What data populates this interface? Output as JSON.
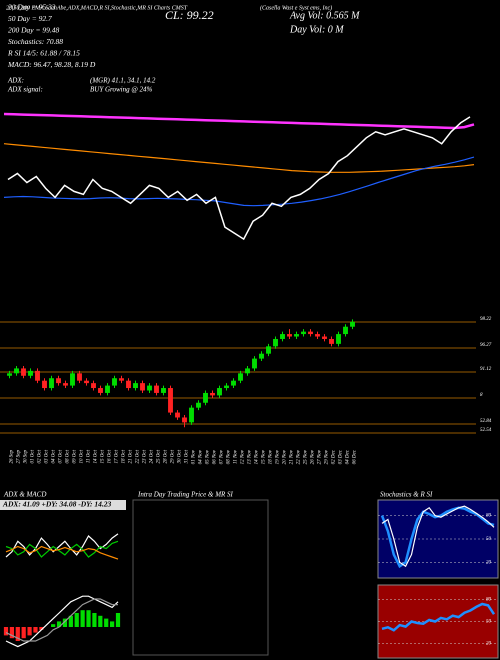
{
  "header": {
    "title": "20,50,200 EMA ScanAbe,ADX,MACD,R SI,Stochastic,MR SI Charts CMST",
    "subtitle": "(Casella Wast e Syst ems, Inc)",
    "cl": "CL: 99.22",
    "avg_vol": "Avg Vol: 0.565 M",
    "day_vol": "Day Vol: 0 M",
    "stats": [
      "20 Day = 95.33",
      "50 Day = 92.7",
      "200 Day = 99.48",
      "Stochastics: 70.88",
      "R SI 14/5: 61.88 / 78.15",
      "MACD: 96.47, 98.28, 8.19 D"
    ],
    "adx_line": [
      "ADX:",
      "(MGR) 41.1, 34.1, 14.2"
    ],
    "adx_signal": [
      "ADX signal:",
      "BUY Growing @ 24%"
    ]
  },
  "panels": {
    "adx_macd": "ADX & MACD",
    "intraday": "Intra Day Trading Price & MR SI",
    "stoch_rsi": "Stochastics & R SI",
    "adx_values": "ADX: 41.09 +DY: 34.08 -DY: 14.23"
  },
  "chart_data": [
    {
      "type": "line",
      "ylim": [
        55,
        102
      ],
      "price_color": "#ffffff",
      "series": [
        {
          "color": "#ff33ff",
          "values": [
            100,
            99.9,
            99.8,
            99.7,
            99.6,
            99.5,
            99.4,
            99.3,
            99.2,
            99.1,
            99,
            98.9,
            98.8,
            98.7,
            98.6,
            98.5,
            98.4,
            98.3,
            98.2,
            98.1,
            98,
            97.9,
            97.8,
            97.7,
            97.6,
            97.5,
            97.4,
            97.3,
            97.2,
            97.1,
            97,
            96.9,
            96.8,
            96.7,
            96.6,
            96.5,
            96.4,
            96.3,
            96.2,
            96.1,
            96,
            95.9,
            95.8,
            95.7,
            95.6,
            95.5,
            95.4,
            95.3,
            95.6,
            96.5
          ]
        },
        {
          "color": "#ff8c00",
          "values": [
            90,
            89.7,
            89.4,
            89.1,
            88.8,
            88.5,
            88.2,
            87.9,
            87.6,
            87.3,
            87,
            86.7,
            86.4,
            86.1,
            85.8,
            85.5,
            85.2,
            84.9,
            84.6,
            84.3,
            84,
            83.7,
            83.4,
            83.1,
            82.8,
            82.5,
            82.2,
            81.9,
            81.6,
            81.3,
            81,
            80.8,
            80.6,
            80.5,
            80.4,
            80.4,
            80.4,
            80.5,
            80.6,
            80.7,
            80.9,
            81.1,
            81.3,
            81.5,
            81.7,
            81.9,
            82.1,
            82.3,
            82.6,
            83
          ]
        },
        {
          "color": "#1f5fff",
          "values": [
            72,
            72.2,
            72.3,
            72.2,
            72,
            71.8,
            71.7,
            71.6,
            71.5,
            71.6,
            71.8,
            71.9,
            71.8,
            71.6,
            71.5,
            71.6,
            71.7,
            71.6,
            71.5,
            71.3,
            71.2,
            71,
            70.8,
            70.3,
            69.8,
            69.3,
            69.2,
            69.3,
            69.5,
            69.7,
            70,
            70.4,
            70.9,
            71.5,
            72.2,
            73,
            73.9,
            74.9,
            75.9,
            77,
            78,
            79,
            80,
            81,
            81.8,
            82.5,
            83.1,
            83.8,
            84.6,
            85.5
          ]
        }
      ]
    },
    {
      "type": "candlestick",
      "ylim": [
        50,
        103
      ],
      "categories": [
        "26 Sep",
        "27 Sep",
        "30 Sep",
        "01 Oct",
        "02 Oct",
        "03 Oct",
        "04 Oct",
        "07 Oct",
        "08 Oct",
        "09 Oct",
        "10 Oct",
        "11 Oct",
        "14 Oct",
        "15 Oct",
        "16 Oct",
        "17 Oct",
        "18 Oct",
        "21 Oct",
        "22 Oct",
        "23 Oct",
        "24 Oct",
        "25 Oct",
        "28 Oct",
        "29 Oct",
        "30 Oct",
        "31 Oct",
        "01 Nov",
        "04 Nov",
        "05 Nov",
        "06 Nov",
        "07 Nov",
        "08 Nov",
        "11 Nov",
        "12 Nov",
        "13 Nov",
        "14 Nov",
        "15 Nov",
        "18 Nov",
        "19 Nov",
        "20 Nov",
        "21 Nov",
        "22 Nov",
        "25 Nov",
        "26 Nov",
        "27 Nov",
        "29 Nov",
        "02 Dec",
        "03 Dec",
        "04 Dec",
        "06 Dec"
      ],
      "open": [
        77,
        78,
        80,
        77,
        79,
        75,
        72,
        76,
        74,
        73,
        78,
        75,
        74,
        72,
        70,
        73,
        76,
        75,
        72,
        74,
        71,
        73,
        70,
        72,
        62,
        60,
        58,
        64,
        66,
        70,
        69,
        72,
        73,
        75,
        78,
        80,
        84,
        86,
        89,
        92,
        94,
        93,
        94,
        95,
        94,
        93,
        92,
        90,
        94,
        97
      ],
      "high": [
        79,
        81,
        81,
        80,
        80,
        76,
        77,
        77,
        75,
        79,
        79,
        76,
        75,
        73,
        74,
        77,
        77,
        76,
        75,
        75,
        74,
        74,
        73,
        73,
        63,
        61,
        65,
        67,
        71,
        71,
        73,
        74,
        76,
        79,
        81,
        85,
        87,
        90,
        93,
        95,
        96,
        95,
        96,
        96,
        95,
        94,
        93,
        95,
        98,
        100
      ],
      "low": [
        76,
        77,
        76,
        76,
        74,
        71,
        71,
        73,
        72,
        72,
        74,
        73,
        71,
        69,
        69,
        72,
        74,
        71,
        71,
        70,
        70,
        69,
        69,
        61,
        59,
        56,
        57,
        63,
        65,
        68,
        68,
        71,
        72,
        74,
        77,
        79,
        83,
        85,
        88,
        91,
        92,
        92,
        93,
        93,
        92,
        91,
        89,
        89,
        93,
        96
      ],
      "close": [
        78,
        80,
        77,
        79,
        75,
        72,
        76,
        74,
        73,
        78,
        75,
        74,
        72,
        70,
        73,
        76,
        75,
        72,
        74,
        71,
        73,
        70,
        72,
        62,
        60,
        58,
        64,
        66,
        70,
        69,
        72,
        73,
        75,
        78,
        80,
        84,
        86,
        89,
        92,
        94,
        93,
        94,
        95,
        94,
        93,
        92,
        90,
        94,
        97,
        99
      ],
      "up_color": "#00dd00",
      "down_color": "#ff2222",
      "level_color": "#c87800",
      "levels": [
        "98.22",
        "96.27",
        "91.12",
        "8",
        "52.84",
        "52.54"
      ]
    },
    {
      "type": "line",
      "ylim": [
        0,
        60
      ],
      "series": [
        {
          "color": "#ffffff",
          "values": [
            20,
            25,
            35,
            30,
            22,
            28,
            38,
            32,
            25,
            30,
            35,
            28,
            22,
            30,
            40,
            35,
            28,
            32,
            38,
            42
          ]
        },
        {
          "color": "#00cc00",
          "values": [
            30,
            28,
            22,
            25,
            32,
            28,
            20,
            25,
            30,
            26,
            22,
            28,
            32,
            27,
            20,
            24,
            30,
            28,
            33,
            35
          ]
        },
        {
          "color": "#ff8c00",
          "values": [
            25,
            27,
            30,
            28,
            24,
            26,
            30,
            28,
            26,
            27,
            29,
            27,
            25,
            26,
            28,
            27,
            24,
            22,
            20,
            18
          ]
        }
      ]
    },
    {
      "type": "macd",
      "ylim": [
        -10,
        15
      ],
      "histogram": [
        -3,
        -4,
        -5,
        -4,
        -3,
        -2,
        -1,
        0,
        1,
        2,
        3,
        4,
        5,
        6,
        6,
        5,
        4,
        3,
        2,
        5
      ],
      "up_color": "#00dd00",
      "down_color": "#ff2222",
      "series": [
        {
          "color": "#ffffff",
          "values": [
            -5,
            -6,
            -7,
            -6,
            -5,
            -3,
            -1,
            1,
            3,
            5,
            7,
            9,
            10,
            11,
            11,
            10,
            9,
            8,
            7,
            9
          ]
        },
        {
          "color": "#999999",
          "values": [
            -2,
            -3,
            -4,
            -5,
            -5,
            -5,
            -4,
            -3,
            -1,
            0,
            2,
            4,
            6,
            8,
            9,
            10,
            10,
            9,
            8,
            8
          ]
        }
      ]
    },
    {
      "type": "line",
      "ylim": [
        0,
        100
      ],
      "yticks": [
        80,
        50,
        20
      ],
      "background": "#000066",
      "series": [
        {
          "color": "#1f8fff",
          "values": [
            80,
            60,
            30,
            15,
            20,
            50,
            75,
            85,
            82,
            78,
            80,
            85,
            88,
            90,
            89,
            85,
            82,
            76,
            70,
            68
          ]
        },
        {
          "color": "#ffffff",
          "values": [
            70,
            75,
            50,
            20,
            15,
            30,
            65,
            85,
            90,
            80,
            78,
            82,
            86,
            90,
            92,
            88,
            83,
            78,
            72,
            65
          ]
        }
      ]
    },
    {
      "type": "line",
      "ylim": [
        0,
        100
      ],
      "yticks": [
        80,
        50,
        20
      ],
      "background": "#990000",
      "series": [
        {
          "color": "#1f8fff",
          "values": [
            40,
            42,
            38,
            45,
            43,
            50,
            48,
            47,
            52,
            50,
            55,
            53,
            58,
            56,
            62,
            65,
            70,
            74,
            72,
            60
          ]
        }
      ]
    }
  ]
}
